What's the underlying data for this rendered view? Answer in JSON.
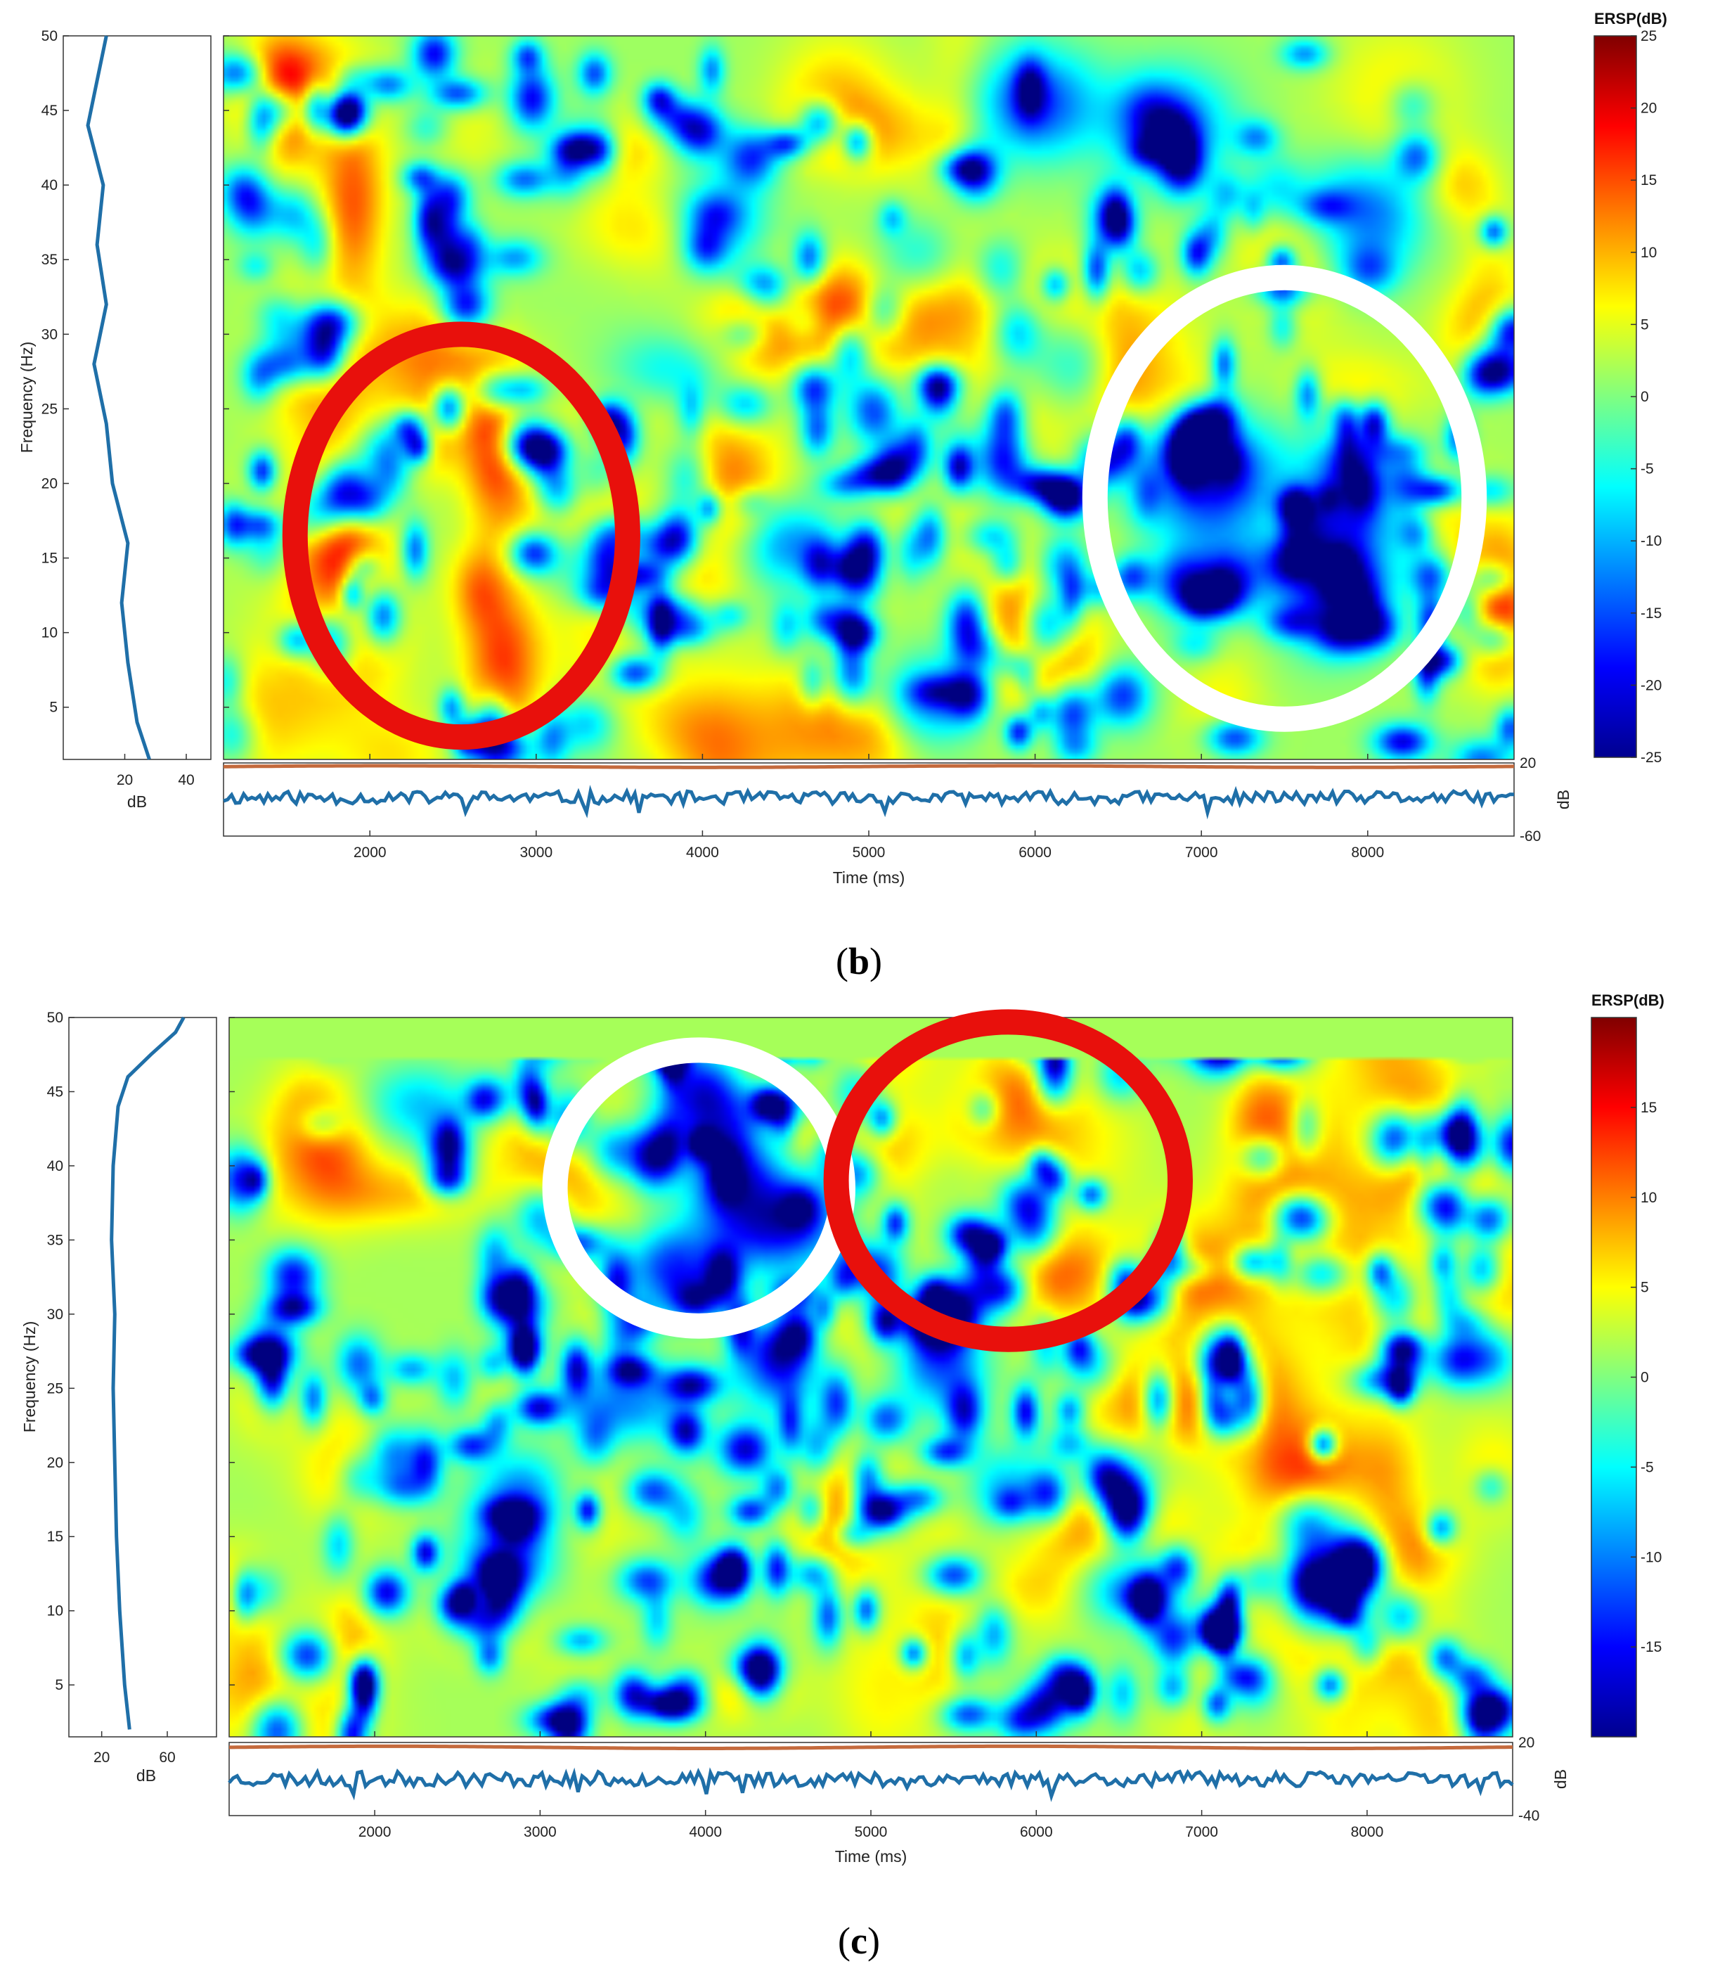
{
  "chart_data": [
    {
      "type": "heatmap",
      "panel_label": "b",
      "colorbar_title": "ERSP(dB)",
      "xlabel": "Time (ms)",
      "ylabel": "Frequency (Hz)",
      "xlim": [
        1120,
        8880
      ],
      "ylim": [
        1.5,
        50
      ],
      "x_ticks": [
        2000,
        3000,
        4000,
        5000,
        6000,
        7000,
        8000
      ],
      "y_ticks": [
        5,
        10,
        15,
        20,
        25,
        30,
        35,
        40,
        45,
        50
      ],
      "color_range": [
        -25,
        25
      ],
      "colorbar_ticks": [
        25,
        20,
        15,
        10,
        5,
        0,
        -5,
        -10,
        -15,
        -20,
        -25
      ],
      "left_marginal": {
        "xlabel": "dB",
        "x_ticks": [
          20,
          40
        ],
        "xlim": [
          0,
          48
        ],
        "points": [
          [
            28,
            1.5
          ],
          [
            24,
            4
          ],
          [
            21,
            8
          ],
          [
            19,
            12
          ],
          [
            21,
            16
          ],
          [
            16,
            20
          ],
          [
            14,
            24
          ],
          [
            10,
            28
          ],
          [
            14,
            32
          ],
          [
            11,
            36
          ],
          [
            13,
            40
          ],
          [
            8,
            44
          ],
          [
            11,
            47
          ],
          [
            14,
            50
          ]
        ]
      },
      "bottom_trace": {
        "ylabel": "dB",
        "y_ticks": [
          20,
          -60
        ],
        "ylim": [
          -60,
          20
        ],
        "upper_level": 16,
        "lower_level": -18,
        "noise": 7,
        "seed": 11
      },
      "annotations": [
        {
          "shape": "ellipse",
          "color": "#e8100c",
          "center": [
            2550,
            16.5
          ],
          "radius": [
            1000,
            13.5
          ],
          "meaning": "increase"
        },
        {
          "shape": "ellipse",
          "color": "#ffffff",
          "center": [
            7500,
            19
          ],
          "radius": [
            1140,
            14.8
          ],
          "meaning": "decrease"
        }
      ],
      "field": {
        "seed": 7,
        "blobs": [
          [
            1900,
            39,
            140,
            4.5,
            13
          ],
          [
            1800,
            17.5,
            150,
            3.5,
            12
          ],
          [
            2750,
            22,
            130,
            3.5,
            12
          ],
          [
            2800,
            8,
            160,
            3.5,
            14
          ],
          [
            1500,
            45,
            160,
            3,
            8
          ],
          [
            2650,
            13,
            120,
            2,
            9
          ],
          [
            2350,
            29,
            200,
            2.5,
            7
          ],
          [
            4800,
            46,
            250,
            3,
            7
          ],
          [
            8800,
            11.5,
            120,
            3,
            11
          ],
          [
            4950,
            32,
            250,
            2.5,
            6
          ],
          [
            6200,
            7.5,
            200,
            2,
            5
          ],
          [
            7050,
            20.5,
            280,
            3,
            -23
          ],
          [
            7900,
            19,
            220,
            3,
            -23
          ],
          [
            7800,
            12.5,
            250,
            2.5,
            -21
          ],
          [
            7200,
            14,
            200,
            2,
            -17
          ],
          [
            7950,
            38,
            250,
            2.5,
            -18
          ],
          [
            6800,
            44,
            250,
            2.5,
            -17
          ],
          [
            6000,
            45.5,
            250,
            2.5,
            -18
          ],
          [
            4100,
            37,
            200,
            2.5,
            -16
          ],
          [
            5300,
            35,
            200,
            2,
            -13
          ],
          [
            3350,
            14.5,
            220,
            2,
            -15
          ],
          [
            4500,
            16,
            200,
            2,
            -14
          ],
          [
            5700,
            21.5,
            200,
            2,
            -13
          ],
          [
            3800,
            27,
            250,
            2,
            -11
          ],
          [
            5350,
            5.5,
            200,
            2,
            -14
          ],
          [
            6300,
            28,
            200,
            2,
            -10
          ]
        ],
        "speckle_count": 240,
        "speckle_range": [
          -22,
          -8
        ],
        "warm_count": 70,
        "warm_range": [
          3,
          7
        ]
      }
    },
    {
      "type": "heatmap",
      "panel_label": "c",
      "colorbar_title": "ERSP(dB)",
      "xlabel": "Time (ms)",
      "ylabel": "Frequency (Hz)",
      "xlim": [
        1120,
        8880
      ],
      "ylim": [
        1.5,
        50
      ],
      "x_ticks": [
        2000,
        3000,
        4000,
        5000,
        6000,
        7000,
        8000
      ],
      "y_ticks": [
        5,
        10,
        15,
        20,
        25,
        30,
        35,
        40,
        45,
        50
      ],
      "color_range": [
        -20,
        20
      ],
      "colorbar_ticks": [
        15,
        10,
        5,
        0,
        -5,
        -10,
        -15
      ],
      "left_marginal": {
        "xlabel": "dB",
        "x_ticks": [
          20,
          60
        ],
        "xlim": [
          0,
          90
        ],
        "points": [
          [
            37,
            2
          ],
          [
            34,
            5
          ],
          [
            31,
            10
          ],
          [
            29,
            15
          ],
          [
            28,
            20
          ],
          [
            27,
            25
          ],
          [
            28,
            30
          ],
          [
            26,
            35
          ],
          [
            27,
            40
          ],
          [
            30,
            44
          ],
          [
            36,
            46
          ],
          [
            50,
            47.5
          ],
          [
            65,
            49
          ],
          [
            70,
            50
          ]
        ]
      },
      "bottom_trace": {
        "ylabel": "dB",
        "y_ticks": [
          20,
          -40
        ],
        "ylim": [
          -40,
          20
        ],
        "upper_level": 16,
        "lower_level": -10,
        "noise": 6,
        "seed": 23
      },
      "annotations": [
        {
          "shape": "ellipse",
          "color": "#ffffff",
          "center": [
            3960,
            38.5
          ],
          "radius": [
            870,
            9.3
          ],
          "meaning": "decrease"
        },
        {
          "shape": "ellipse",
          "color": "#e8100c",
          "center": [
            5830,
            39
          ],
          "radius": [
            1040,
            10.7
          ],
          "meaning": "increase"
        }
      ],
      "field": {
        "seed": 13,
        "top_band": [
          47.2,
          50,
          1.5
        ],
        "blobs": [
          [
            4150,
            41,
            200,
            3,
            -20
          ],
          [
            4450,
            36,
            280,
            2.5,
            -18
          ],
          [
            3800,
            33,
            200,
            2,
            -15
          ],
          [
            3950,
            45,
            180,
            2,
            -15
          ],
          [
            7800,
            12,
            170,
            2.5,
            -20
          ],
          [
            6500,
            12,
            250,
            2,
            -15
          ],
          [
            3500,
            24,
            250,
            2,
            -14
          ],
          [
            5400,
            27,
            200,
            2.5,
            -14
          ],
          [
            4450,
            26,
            200,
            2,
            -13
          ],
          [
            2800,
            13.5,
            200,
            2,
            -14
          ],
          [
            5800,
            18,
            200,
            2,
            -13
          ],
          [
            2300,
            44,
            250,
            2,
            -12
          ],
          [
            2900,
            18,
            200,
            2,
            -12
          ],
          [
            6600,
            20,
            250,
            2,
            -11
          ],
          [
            6150,
            33,
            200,
            2,
            5
          ],
          [
            5150,
            41,
            150,
            2,
            4
          ],
          [
            5800,
            45,
            200,
            2,
            4
          ],
          [
            7100,
            26,
            200,
            3,
            7
          ],
          [
            8250,
            14,
            220,
            2,
            7
          ],
          [
            5800,
            17,
            200,
            2,
            5
          ],
          [
            2100,
            38,
            300,
            1.5,
            5
          ],
          [
            4100,
            4.5,
            300,
            1.5,
            5
          ],
          [
            1150,
            11.5,
            200,
            2,
            5
          ],
          [
            1850,
            19,
            200,
            2,
            4
          ],
          [
            1800,
            7,
            200,
            2,
            4
          ],
          [
            8600,
            40,
            200,
            2,
            4
          ]
        ],
        "speckle_count": 260,
        "speckle_range": [
          -19,
          -8
        ],
        "warm_count": 80,
        "warm_range": [
          2,
          5
        ]
      }
    }
  ]
}
